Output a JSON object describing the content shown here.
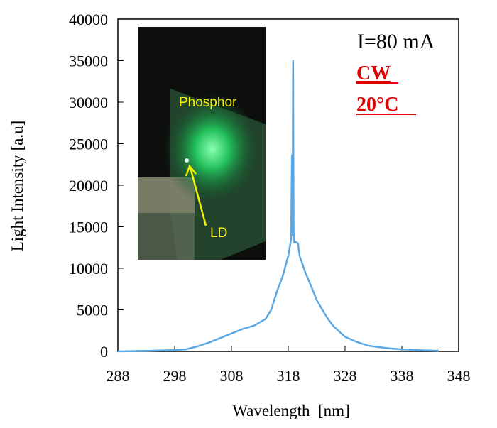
{
  "chart_data": {
    "type": "line",
    "title": "",
    "xlabel": "Wavelength  [nm]",
    "ylabel": "Light Intensity [a.u]",
    "xlim": [
      288,
      348
    ],
    "ylim": [
      0,
      40000
    ],
    "xticks": [
      "288",
      "298",
      "308",
      "318",
      "328",
      "338",
      "348"
    ],
    "yticks": [
      "0",
      "5000",
      "10000",
      "15000",
      "20000",
      "25000",
      "30000",
      "35000",
      "40000"
    ],
    "grid": false,
    "line_color": "#5aa9e6",
    "series": [
      {
        "x": [
          288,
          293,
          298,
          300,
          302,
          304,
          306,
          308,
          310,
          312,
          314,
          315,
          316,
          317,
          318,
          318.5,
          318.65,
          318.75,
          318.85,
          318.95,
          319.05,
          319.3,
          319.7,
          320,
          321,
          322,
          323,
          324,
          325,
          326,
          328,
          330,
          332,
          334,
          336,
          338,
          340,
          342,
          344.5
        ],
        "y": [
          0,
          60,
          150,
          250,
          600,
          1050,
          1600,
          2150,
          2700,
          3100,
          3900,
          5000,
          7200,
          9000,
          11500,
          13500,
          23600,
          14000,
          35000,
          14500,
          13100,
          13200,
          13000,
          11500,
          9500,
          7900,
          6200,
          5000,
          3900,
          3000,
          1750,
          1150,
          700,
          500,
          350,
          250,
          180,
          120,
          80
        ]
      }
    ],
    "annotations": {
      "current": "I=80 mA",
      "mode": "CW",
      "temperature": "20°C",
      "annotation_color": "#e00000"
    },
    "inset_photo": {
      "label_phosphor": "Phosphor",
      "label_ld": "LD",
      "label_color": "#f5f000"
    }
  }
}
